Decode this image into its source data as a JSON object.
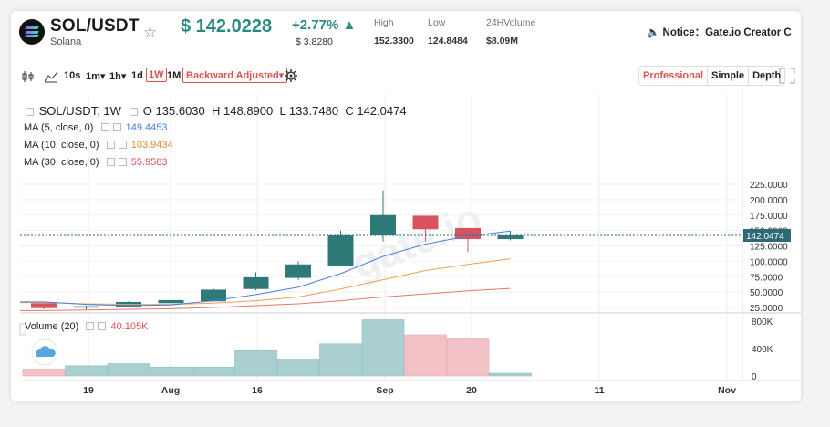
{
  "header": {
    "pair": "SOL/USDT",
    "name": "Solana",
    "price": "$ 142.0228",
    "change_pct": "+2.77% ▲",
    "change_abs": "$ 3.8280",
    "high_label": "High",
    "high_value": "152.3300",
    "low_label": "Low",
    "low_value": "124.8484",
    "vol_label": "24HVolume",
    "vol_value": "$8.09M",
    "notice": "🔈 Notice：Gate.io Creator C"
  },
  "toolbar": {
    "intervals": [
      "10s",
      "1m▾",
      "1h▾",
      "1d"
    ],
    "active_interval": "1W",
    "interval_1M": "1M",
    "adjust": "Backward Adjusted▾",
    "views": [
      "Professional",
      "Simple",
      "Depth"
    ]
  },
  "legend": {
    "title": "SOL/USDT, 1W",
    "o_label": "O",
    "o": "135.6030",
    "h_label": "H",
    "h": "148.8900",
    "l_label": "L",
    "l": "133.7480",
    "c_label": "C",
    "c": "142.0474",
    "ma5_label": "MA (5, close, 0)",
    "ma5": "149.4453",
    "ma10_label": "MA (10, close, 0)",
    "ma10": "103.9434",
    "ma30_label": "MA (30, close, 0)",
    "ma30": "55.9583",
    "volume_label": "Volume (20)",
    "volume": "40.105K"
  },
  "colors": {
    "up": "#2d7a78",
    "down": "#d9535f",
    "ma5": "#4a7fe0",
    "ma10": "#f0a050",
    "ma30": "#e07a6a"
  },
  "chart_data": {
    "type": "candlestick",
    "price_ticks": [
      "225.0000",
      "200.0000",
      "175.0000",
      "150.0000",
      "125.0000",
      "100.0000",
      "75.0000",
      "50.0000",
      "25.0000"
    ],
    "last_price_tag": "142.0474",
    "volume_ticks": [
      "800K",
      "400K",
      "0"
    ],
    "x_ticks": [
      "19",
      "Aug",
      "16",
      "Sep",
      "20",
      "11",
      "Nov"
    ],
    "candles": [
      {
        "o": 32,
        "h": 33,
        "l": 22,
        "c": 24,
        "v": 100
      },
      {
        "o": 26,
        "h": 28,
        "l": 22,
        "c": 27,
        "v": 150
      },
      {
        "o": 26,
        "h": 35,
        "l": 25,
        "c": 34,
        "v": 180
      },
      {
        "o": 32,
        "h": 38,
        "l": 30,
        "c": 37,
        "v": 130
      },
      {
        "o": 35,
        "h": 56,
        "l": 34,
        "c": 54,
        "v": 130
      },
      {
        "o": 55,
        "h": 82,
        "l": 53,
        "c": 74,
        "v": 370
      },
      {
        "o": 73,
        "h": 100,
        "l": 70,
        "c": 95,
        "v": 250
      },
      {
        "o": 93,
        "h": 150,
        "l": 92,
        "c": 142,
        "v": 470
      },
      {
        "o": 142,
        "h": 215,
        "l": 132,
        "c": 175,
        "v": 820
      },
      {
        "o": 174,
        "h": 174,
        "l": 132,
        "c": 152,
        "v": 600
      },
      {
        "o": 154,
        "h": 154,
        "l": 115,
        "c": 136,
        "v": 550
      },
      {
        "o": 136,
        "h": 149,
        "l": 134,
        "c": 142,
        "v": 40
      }
    ],
    "ma5": [
      34,
      30,
      28,
      29,
      36,
      46,
      58,
      80,
      108,
      128,
      141,
      149
    ],
    "ma10": [
      33,
      31,
      30,
      30,
      32,
      36,
      42,
      55,
      70,
      85,
      95,
      104
    ],
    "ma30": [
      20,
      21,
      22,
      23,
      25,
      28,
      31,
      36,
      42,
      47,
      52,
      56
    ]
  }
}
